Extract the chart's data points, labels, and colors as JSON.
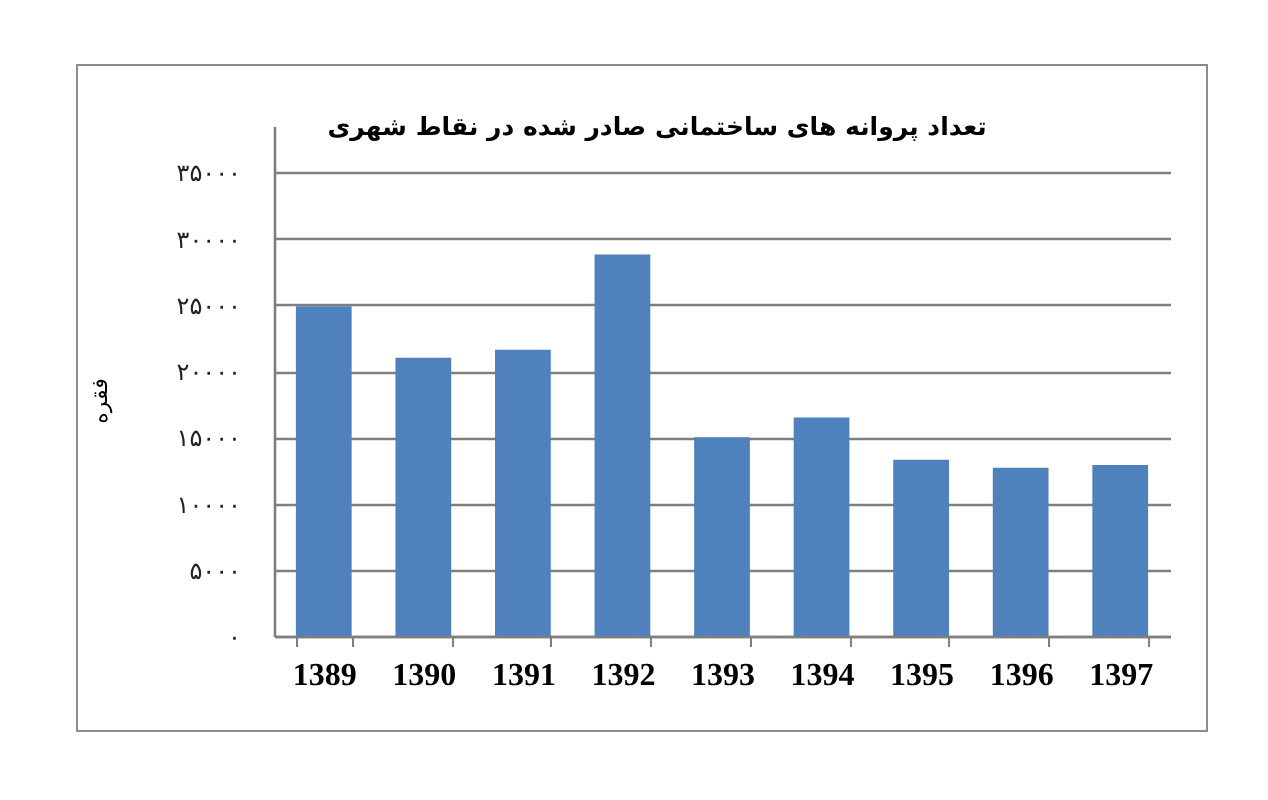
{
  "chart_data": {
    "type": "bar",
    "title": "تعداد پروانه های ساختمانی صادر شده در نقاط شهری",
    "ylabel": "فقره",
    "categories": [
      "1389",
      "1390",
      "1391",
      "1392",
      "1393",
      "1394",
      "1395",
      "1396",
      "1397"
    ],
    "values": [
      24900,
      21000,
      21600,
      28800,
      15000,
      16500,
      13300,
      12700,
      12900
    ],
    "color": "#4f81bd",
    "ylim": [
      0,
      38500
    ],
    "yticks": [
      {
        "value": 0,
        "label": "۰"
      },
      {
        "value": 5000,
        "label": "۵۰۰۰"
      },
      {
        "value": 10000,
        "label": "۱۰۰۰۰"
      },
      {
        "value": 15000,
        "label": "۱۵۰۰۰"
      },
      {
        "value": 20000,
        "label": "۲۰۰۰۰"
      },
      {
        "value": 25000,
        "label": "۲۵۰۰۰"
      },
      {
        "value": 30000,
        "label": "۳۰۰۰۰"
      },
      {
        "value": 35000,
        "label": "۳۵۰۰۰"
      }
    ],
    "grid": "y"
  }
}
